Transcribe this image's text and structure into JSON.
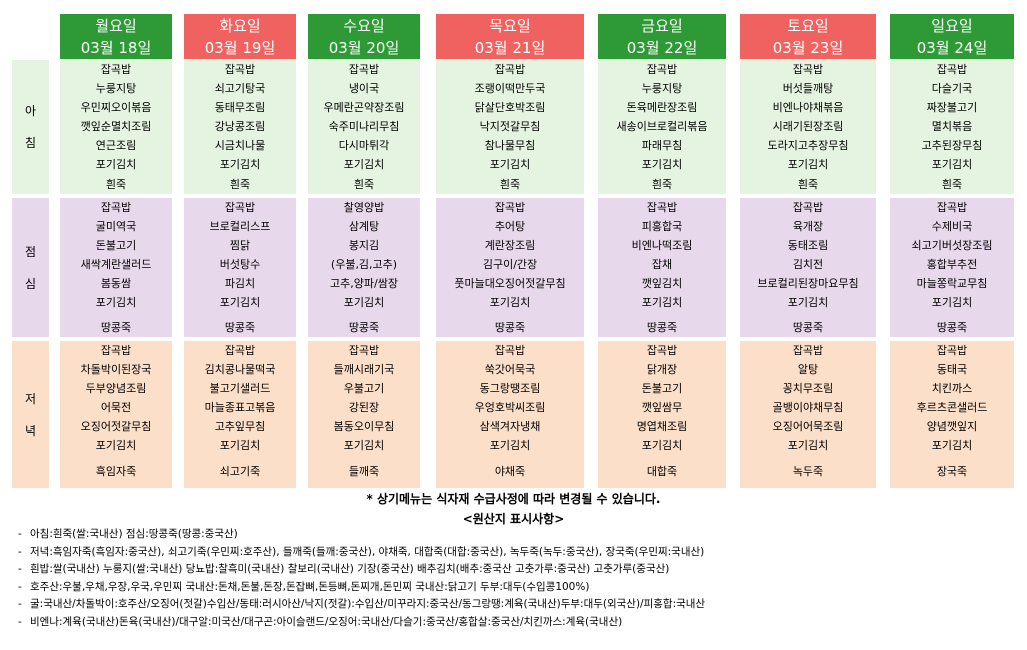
{
  "days": [
    {
      "day": "월요일",
      "date": "03월 18일",
      "color": "#2e9a35"
    },
    {
      "day": "화요일",
      "date": "03월 19일",
      "color": "#f0625f"
    },
    {
      "day": "수요일",
      "date": "03월 20일",
      "color": "#2e9a35"
    },
    {
      "day": "목요일",
      "date": "03월 21일",
      "color": "#f0625f"
    },
    {
      "day": "금요일",
      "date": "03월 22일",
      "color": "#2e9a35"
    },
    {
      "day": "토요일",
      "date": "03월 23일",
      "color": "#f0625f"
    },
    {
      "day": "일요일",
      "date": "03월 24일",
      "color": "#2e9a35"
    }
  ],
  "meals": [
    {
      "label_chars": [
        "아",
        "침"
      ],
      "color": "#e5f4e0"
    },
    {
      "label_chars": [
        "점",
        "심"
      ],
      "color": "#e8d8ec"
    },
    {
      "label_chars": [
        "저",
        "녁"
      ],
      "color": "#fbdfc8"
    }
  ],
  "breakfast": [
    [
      "잡곡밥",
      "누룽지탕",
      "우민찌오이볶음",
      "깻잎순멸치조림",
      "연근조림",
      "포기김치",
      "흰죽"
    ],
    [
      "잡곡밥",
      "쇠고기탕국",
      "동태무조림",
      "강낭콩조림",
      "시금치나물",
      "포기김치",
      "흰죽"
    ],
    [
      "잡곡밥",
      "냉이국",
      "우메란곤약장조림",
      "숙주미나리무침",
      "다시마튀각",
      "포기김치",
      "흰죽"
    ],
    [
      "잡곡밥",
      "조랭이떡만두국",
      "닭살단호박조림",
      "낙지젓갈무침",
      "참나물무침",
      "포기김치",
      "흰죽"
    ],
    [
      "잡곡밥",
      "누룽지탕",
      "돈육메란장조림",
      "새송이브로컬리볶음",
      "파래무침",
      "포기김치",
      "흰죽"
    ],
    [
      "잡곡밥",
      "버섯들깨탕",
      "비엔나야채볶음",
      "시래기된장조림",
      "도라지고추장무침",
      "포기김치",
      "흰죽"
    ],
    [
      "잡곡밥",
      "다슬기국",
      "짜장불고기",
      "멸치볶음",
      "고추된장무침",
      "포기김치",
      "흰죽"
    ]
  ],
  "lunch": [
    [
      "잡곡밥",
      "굴미역국",
      "돈불고기",
      "새싹계란샐러드",
      "봄동쌈",
      "포기김치",
      "땅콩죽"
    ],
    [
      "잡곡밥",
      "브로컬리스프",
      "찜닭",
      "버섯탕수",
      "파김치",
      "포기김치",
      "땅콩죽"
    ],
    [
      "찰영양밥",
      "삼계탕",
      "봉지김",
      "(우불,김,고추)",
      "고추,양파/쌈장",
      "포기김치",
      "땅콩죽"
    ],
    [
      "잡곡밥",
      "추어탕",
      "계란장조림",
      "김구이/간장",
      "풋마늘대오징어젓갈무침",
      "포기김치",
      "땅콩죽"
    ],
    [
      "잡곡밥",
      "피홍합국",
      "비엔나떡조림",
      "잡채",
      "깻잎김치",
      "포기김치",
      "땅콩죽"
    ],
    [
      "잡곡밥",
      "육개장",
      "동태조림",
      "김치전",
      "브로컬리된장마요무침",
      "포기김치",
      "땅콩죽"
    ],
    [
      "잡곡밥",
      "수제비국",
      "쇠고기버섯장조림",
      "홍합부추전",
      "마늘쫑락교무침",
      "포기김치",
      "땅콩죽"
    ]
  ],
  "dinner": [
    [
      "잡곡밥",
      "차돌박이된장국",
      "두부양념조림",
      "어묵전",
      "오징어젓갈무침",
      "포기김치",
      "흑임자죽"
    ],
    [
      "잡곡밥",
      "김치콩나물떡국",
      "불고기샐러드",
      "마늘종표고볶음",
      "고추잎무침",
      "포기김치",
      "쇠고기죽"
    ],
    [
      "잡곡밥",
      "들깨시래기국",
      "우불고기",
      "강된장",
      "봄동오이무침",
      "포기김치",
      "들깨죽"
    ],
    [
      "잡곡밥",
      "쑥갓어묵국",
      "동그랑땡조림",
      "우엉호박씨조림",
      "삼색겨자냉채",
      "포기김치",
      "야채죽"
    ],
    [
      "잡곡밥",
      "닭개장",
      "돈불고기",
      "깻잎쌈무",
      "명엽채조림",
      "포기김치",
      "대합죽"
    ],
    [
      "잡곡밥",
      "알탕",
      "꽁치무조림",
      "골뱅이야채무침",
      "오징어어묵조림",
      "포기김치",
      "녹두죽"
    ],
    [
      "잡곡밥",
      "동태국",
      "치킨까스",
      "후르츠콘샐러드",
      "양념깻잎지",
      "포기김치",
      "장국죽"
    ]
  ],
  "notice": "* 상기메뉴는 식자재 수급사정에 따라 변경될 수 있습니다.",
  "origin_title": "<원산지 표시사항>",
  "origin_items": [
    "아침:흰죽(쌀:국내산) 점심:땅콩죽(땅콩:중국산)",
    "저녁:흑임자죽(흑임자:중국산), 쇠고기죽(우민찌:호주산), 들깨죽(들깨:중국산), 야채죽, 대합죽(대합:중국산), 녹두죽(녹두:중국산), 장국죽(우민찌:국내산)",
    "흰밥:쌀(국내산) 누룽지(쌀:국내산) 당뇨밥:찰흑미(국내산) 찰보리(국내산) 기장(중국산) 배추김치(배추:중국산 고춧가루:중국산) 고춧가루(중국산)",
    "호주산:우불,우채,우장,우국,우민찌 국내산:돈채,돈불,돈장,돈잡뼈,돈등뼈,돈찌개,돈민찌 국내산:닭고기 두부:대두(수입콩100%)",
    "굴:국내산/차돌박이:호주산/오징어(젓갈)수입산/동태:러시아산/낙지(젓갈):수입산/미꾸라지:중국산/동그랑땡:계육(국내산)두부:대두(외국산)/피홍합:국내산",
    "비엔나:계육(국내산)돈육(국내산)/대구알:미국산/대구곤:아이슬랜드/오징어:국내산/다슬기:중국산/홍합살:중국산/치킨까스:계육(국내산)"
  ]
}
